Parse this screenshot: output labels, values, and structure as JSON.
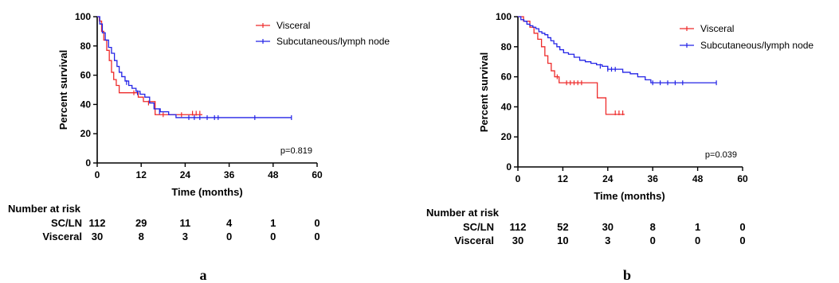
{
  "colors": {
    "visceral": "#ee2b2b",
    "sc_ln": "#2323e6",
    "axis": "#000000"
  },
  "chart_data": [
    {
      "type": "line",
      "subtype": "kaplan-meier",
      "panel_label": "a",
      "xlabel": "Time (months)",
      "ylabel": "Percent survival",
      "xlim": [
        0,
        60
      ],
      "ylim": [
        0,
        100
      ],
      "xticks": [
        0,
        12,
        24,
        36,
        48,
        60
      ],
      "yticks": [
        0,
        20,
        40,
        60,
        80,
        100
      ],
      "legend_position": "top-right",
      "annotation": "p=0.819",
      "series": [
        {
          "name": "Visceral",
          "color_key": "visceral",
          "steps": [
            [
              0,
              100
            ],
            [
              0.6,
              97
            ],
            [
              1.2,
              90
            ],
            [
              1.8,
              84
            ],
            [
              2.6,
              77
            ],
            [
              3.3,
              70
            ],
            [
              3.9,
              62
            ],
            [
              4.5,
              57
            ],
            [
              5.2,
              53
            ],
            [
              6,
              48
            ],
            [
              10.5,
              48
            ],
            [
              11.2,
              45
            ],
            [
              12.6,
              42
            ],
            [
              15.8,
              33
            ],
            [
              28.7,
              33
            ]
          ],
          "censored": [
            [
              10,
              48
            ],
            [
              14,
              41
            ],
            [
              18,
              33
            ],
            [
              23,
              33
            ],
            [
              26,
              34
            ],
            [
              27,
              34
            ],
            [
              28,
              34
            ]
          ]
        },
        {
          "name": "Subcutaneous/lymph node",
          "color_key": "sc_ln",
          "steps": [
            [
              0,
              100
            ],
            [
              0.7,
              95
            ],
            [
              1.4,
              89
            ],
            [
              2.2,
              84
            ],
            [
              3.1,
              79
            ],
            [
              3.9,
              75
            ],
            [
              4.7,
              70
            ],
            [
              5.4,
              66
            ],
            [
              6,
              62
            ],
            [
              6.7,
              59
            ],
            [
              7.6,
              56
            ],
            [
              8.6,
              53
            ],
            [
              9.5,
              51
            ],
            [
              10.6,
              49
            ],
            [
              11.7,
              47
            ],
            [
              13,
              45
            ],
            [
              14.3,
              41
            ],
            [
              15.5,
              37
            ],
            [
              17.2,
              35
            ],
            [
              19.5,
              33
            ],
            [
              21.5,
              31
            ],
            [
              53,
              31
            ]
          ],
          "censored": [
            [
              8,
              55
            ],
            [
              11,
              48
            ],
            [
              17,
              35
            ],
            [
              25,
              31
            ],
            [
              26.5,
              31
            ],
            [
              28,
              31
            ],
            [
              30,
              31
            ],
            [
              32,
              31
            ],
            [
              33,
              31
            ],
            [
              43,
              31
            ],
            [
              53,
              31
            ]
          ]
        }
      ],
      "risk_table": {
        "title": "Number at risk",
        "times": [
          0,
          12,
          24,
          36,
          48,
          60
        ],
        "rows": [
          {
            "label": "SC/LN",
            "values": [
              "112",
              "29",
              "11",
              "4",
              "1",
              "0"
            ]
          },
          {
            "label": "Visceral",
            "values": [
              "30",
              "8",
              "3",
              "0",
              "0",
              "0"
            ]
          }
        ]
      }
    },
    {
      "type": "line",
      "subtype": "kaplan-meier",
      "panel_label": "b",
      "xlabel": "Time (months)",
      "ylabel": "Percent survival",
      "xlim": [
        0,
        60
      ],
      "ylim": [
        0,
        100
      ],
      "xticks": [
        0,
        12,
        24,
        36,
        48,
        60
      ],
      "yticks": [
        0,
        20,
        40,
        60,
        80,
        100
      ],
      "legend_position": "top-right",
      "annotation": "p=0.039",
      "series": [
        {
          "name": "Visceral",
          "color_key": "visceral",
          "steps": [
            [
              0,
              100
            ],
            [
              1.5,
              97
            ],
            [
              3.2,
              93
            ],
            [
              4.3,
              89
            ],
            [
              5.3,
              85
            ],
            [
              6.3,
              80
            ],
            [
              7.2,
              74
            ],
            [
              8,
              69
            ],
            [
              8.9,
              64
            ],
            [
              9.8,
              60
            ],
            [
              11,
              56
            ],
            [
              21,
              56
            ],
            [
              21.2,
              46
            ],
            [
              23.3,
              46
            ],
            [
              23.5,
              35
            ],
            [
              28.5,
              35
            ]
          ],
          "censored": [
            [
              10.5,
              60
            ],
            [
              13,
              56
            ],
            [
              14,
              56
            ],
            [
              15,
              56
            ],
            [
              16,
              56
            ],
            [
              17,
              56
            ],
            [
              26,
              36
            ],
            [
              27,
              36
            ],
            [
              28,
              36
            ]
          ]
        },
        {
          "name": "Subcutaneous/lymph node",
          "color_key": "sc_ln",
          "steps": [
            [
              0,
              100
            ],
            [
              0.8,
              98
            ],
            [
              1.6,
              97
            ],
            [
              2.4,
              95
            ],
            [
              3.2,
              94
            ],
            [
              4,
              93
            ],
            [
              4.8,
              92
            ],
            [
              5.6,
              90
            ],
            [
              6.4,
              89
            ],
            [
              7.2,
              88
            ],
            [
              8,
              86
            ],
            [
              8.8,
              84
            ],
            [
              9.6,
              82
            ],
            [
              10.4,
              80
            ],
            [
              11.2,
              78
            ],
            [
              12.2,
              76
            ],
            [
              13.5,
              75
            ],
            [
              15,
              73
            ],
            [
              16.5,
              71
            ],
            [
              18,
              70
            ],
            [
              19.5,
              69
            ],
            [
              21,
              68
            ],
            [
              22.5,
              67
            ],
            [
              24,
              65
            ],
            [
              26.5,
              65
            ],
            [
              28,
              63
            ],
            [
              30,
              62
            ],
            [
              32,
              60
            ],
            [
              34,
              58
            ],
            [
              35.5,
              56
            ],
            [
              53,
              56
            ]
          ],
          "censored": [
            [
              22,
              67
            ],
            [
              24,
              65
            ],
            [
              25,
              65
            ],
            [
              26,
              65
            ],
            [
              36,
              56
            ],
            [
              38,
              56
            ],
            [
              40,
              56
            ],
            [
              42,
              56
            ],
            [
              44,
              56
            ],
            [
              53,
              56
            ]
          ]
        }
      ],
      "risk_table": {
        "title": "Number at risk",
        "times": [
          0,
          12,
          24,
          36,
          48,
          60
        ],
        "rows": [
          {
            "label": "SC/LN",
            "values": [
              "112",
              "52",
              "30",
              "8",
              "1",
              "0"
            ]
          },
          {
            "label": "Visceral",
            "values": [
              "30",
              "10",
              "3",
              "0",
              "0",
              "0"
            ]
          }
        ]
      }
    }
  ]
}
